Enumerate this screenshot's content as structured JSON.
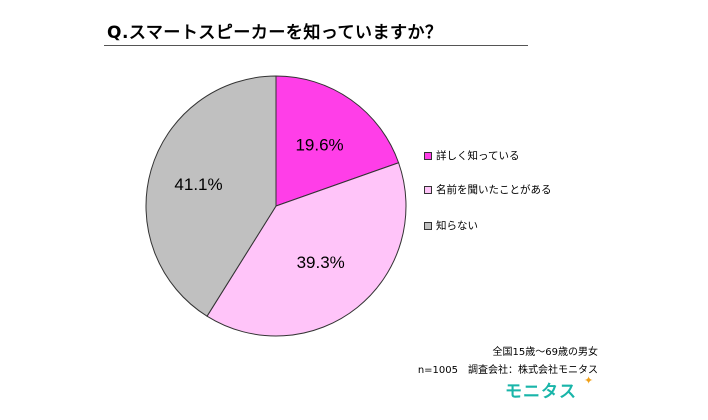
{
  "chart_data": {
    "type": "pie",
    "title": "Q.スマートスピーカーを知っていますか？",
    "categories": [
      "詳しく知っている",
      "名前を聞いたことがある",
      "知らない"
    ],
    "values": [
      19.6,
      39.3,
      41.1
    ],
    "data_labels": [
      "19.6%",
      "39.3%",
      "41.1%"
    ],
    "colors": [
      "#ff3ee8",
      "#ffc4f9",
      "#c0c0c0"
    ],
    "start_angle_deg": 0,
    "direction": "clockwise",
    "legend_position": "right"
  },
  "notes": {
    "line1": "全国15歳～69歳の男女",
    "line2": "n=1005　調査会社：株式会社モニタス"
  },
  "logo": {
    "text": "モニタス",
    "star": "✦"
  }
}
